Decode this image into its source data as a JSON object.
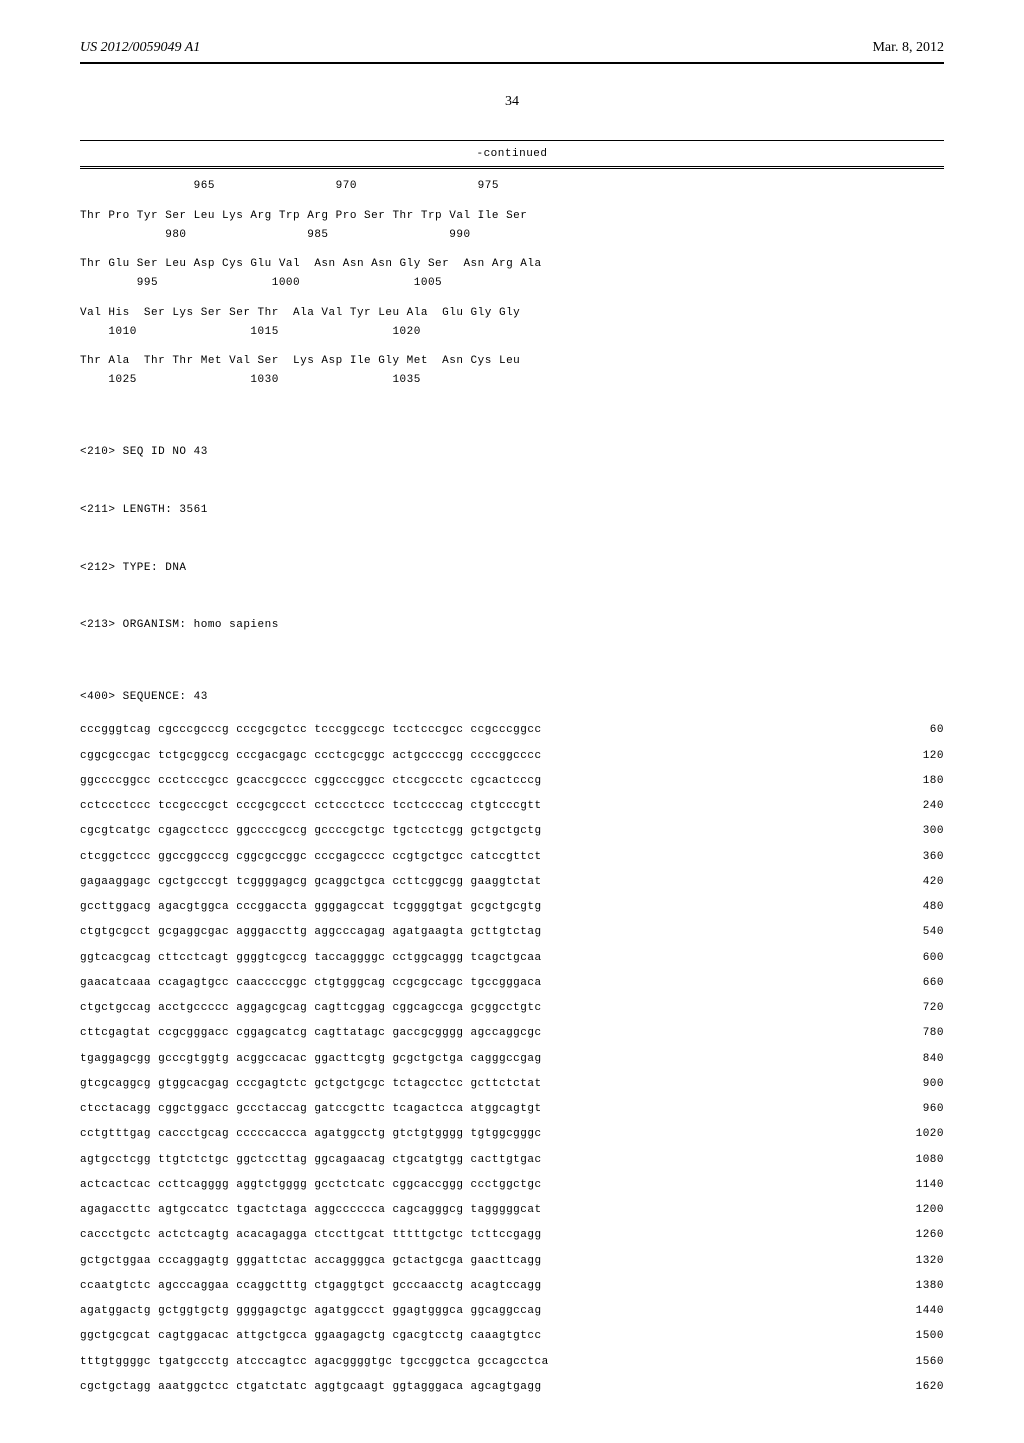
{
  "header": {
    "publication_number": "US 2012/0059049 A1",
    "date": "Mar. 8, 2012"
  },
  "page_number": "34",
  "continued_label": "-continued",
  "protein_sequence": [
    {
      "numbers": "                965                 970                 975"
    },
    {
      "residues": "Thr Pro Tyr Ser Leu Lys Arg Trp Arg Pro Ser Thr Trp Val Ile Ser",
      "numbers": "            980                 985                 990"
    },
    {
      "residues": "Thr Glu Ser Leu Asp Cys Glu Val  Asn Asn Asn Gly Ser  Asn Arg Ala",
      "numbers": "        995                1000                1005"
    },
    {
      "residues": "Val His  Ser Lys Ser Ser Thr  Ala Val Tyr Leu Ala  Glu Gly Gly",
      "numbers": "    1010                1015                1020"
    },
    {
      "residues": "Thr Ala  Thr Thr Met Val Ser  Lys Asp Ile Gly Met  Asn Cys Leu",
      "numbers": "    1025                1030                1035"
    }
  ],
  "seq_metadata": {
    "seq_id": "<210> SEQ ID NO 43",
    "length": "<211> LENGTH: 3561",
    "type": "<212> TYPE: DNA",
    "organism": "<213> ORGANISM: homo sapiens"
  },
  "seq_label": "<400> SEQUENCE: 43",
  "dna_lines": [
    {
      "seq": "cccgggtcag cgcccgcccg cccgcgctcc tcccggccgc tcctcccgcc ccgcccggcc",
      "num": "60"
    },
    {
      "seq": "cggcgccgac tctgcggccg cccgacgagc ccctcgcggc actgccccgg ccccggcccc",
      "num": "120"
    },
    {
      "seq": "ggccccggcc ccctcccgcc gcaccgcccc cggcccggcc ctccgccctc cgcactcccg",
      "num": "180"
    },
    {
      "seq": "cctccctccc tccgcccgct cccgcgccct cctccctccc tcctccccag ctgtcccgtt",
      "num": "240"
    },
    {
      "seq": "cgcgtcatgc cgagcctccc ggccccgccg gccccgctgc tgctcctcgg gctgctgctg",
      "num": "300"
    },
    {
      "seq": "ctcggctccc ggccggcccg cggcgccggc cccgagcccc ccgtgctgcc catccgttct",
      "num": "360"
    },
    {
      "seq": "gagaaggagc cgctgcccgt tcggggagcg gcaggctgca ccttcggcgg gaaggtctat",
      "num": "420"
    },
    {
      "seq": "gccttggacg agacgtggca cccggaccta ggggagccat tcggggtgat gcgctgcgtg",
      "num": "480"
    },
    {
      "seq": "ctgtgcgcct gcgaggcgac agggaccttg aggcccagag agatgaagta gcttgtctag",
      "num": "540"
    },
    {
      "seq": "ggtcacgcag cttcctcagt ggggtcgccg taccaggggc cctggcaggg tcagctgcaa",
      "num": "600"
    },
    {
      "seq": "gaacatcaaa ccagagtgcc caaccccggc ctgtgggcag ccgcgccagc tgccgggaca",
      "num": "660"
    },
    {
      "seq": "ctgctgccag acctgccccc aggagcgcag cagttcggag cggcagccga gcggcctgtc",
      "num": "720"
    },
    {
      "seq": "cttcgagtat ccgcgggacc cggagcatcg cagttatagc gaccgcgggg agccaggcgc",
      "num": "780"
    },
    {
      "seq": "tgaggagcgg gcccgtggtg acggccacac ggacttcgtg gcgctgctga cagggccgag",
      "num": "840"
    },
    {
      "seq": "gtcgcaggcg gtggcacgag cccgagtctc gctgctgcgc tctagcctcc gcttctctat",
      "num": "900"
    },
    {
      "seq": "ctcctacagg cggctggacc gccctaccag gatccgcttc tcagactcca atggcagtgt",
      "num": "960"
    },
    {
      "seq": "cctgtttgag caccctgcag cccccaccca agatggcctg gtctgtgggg tgtggcgggc",
      "num": "1020"
    },
    {
      "seq": "agtgcctcgg ttgtctctgc ggctccttag ggcagaacag ctgcatgtgg cacttgtgac",
      "num": "1080"
    },
    {
      "seq": "actcactcac ccttcagggg aggtctgggg gcctctcatc cggcaccggg ccctggctgc",
      "num": "1140"
    },
    {
      "seq": "agagaccttc agtgccatcc tgactctaga aggcccccca cagcagggcg tagggggcat",
      "num": "1200"
    },
    {
      "seq": "caccctgctc actctcagtg acacagagga ctccttgcat tttttgctgc tcttccgagg",
      "num": "1260"
    },
    {
      "seq": "gctgctggaa cccaggagtg gggattctac accaggggca gctactgcga gaacttcagg",
      "num": "1320"
    },
    {
      "seq": "ccaatgtctc agcccaggaa ccaggctttg ctgaggtgct gcccaacctg acagtccagg",
      "num": "1380"
    },
    {
      "seq": "agatggactg gctggtgctg ggggagctgc agatggccct ggagtgggca ggcaggccag",
      "num": "1440"
    },
    {
      "seq": "ggctgcgcat cagtggacac attgctgcca ggaagagctg cgacgtcctg caaagtgtcc",
      "num": "1500"
    },
    {
      "seq": "tttgtggggc tgatgccctg atcccagtcc agacggggtgc tgccggctca gccagcctca",
      "num": "1560"
    },
    {
      "seq": "cgctgctagg aaatggctcc ctgatctatc aggtgcaagt ggtagggaca agcagtgagg",
      "num": "1620"
    }
  ],
  "styling": {
    "page_background": "#ffffff",
    "text_color": "#000000",
    "header_fontsize": 14,
    "page_number_fontsize": 14,
    "mono_fontsize": 11,
    "mono_line_height": 1.75,
    "rule_color": "#000000"
  }
}
